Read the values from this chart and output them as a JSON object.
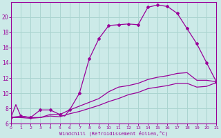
{
  "xlabel": "Windchill (Refroidissement éolien,°C)",
  "bg_color": "#cceae8",
  "grid_color": "#aad4d0",
  "line_color": "#990099",
  "xlim": [
    0,
    21
  ],
  "ylim": [
    6,
    22
  ],
  "xticks": [
    0,
    1,
    2,
    3,
    4,
    5,
    6,
    7,
    8,
    9,
    10,
    11,
    12,
    13,
    14,
    15,
    16,
    17,
    18,
    19,
    20,
    21
  ],
  "yticks": [
    6,
    8,
    10,
    12,
    14,
    16,
    18,
    20
  ],
  "curve1_x": [
    0,
    0.5,
    1,
    2,
    3,
    3.5,
    4,
    4.5,
    5,
    5.5,
    6,
    7,
    8,
    9,
    10,
    11,
    12,
    13,
    14,
    15,
    16,
    17,
    18,
    19,
    20,
    21
  ],
  "curve1_y": [
    6.8,
    8.5,
    7.0,
    6.8,
    7.8,
    7.8,
    7.8,
    7.5,
    7.2,
    7.0,
    7.8,
    10.0,
    14.5,
    17.2,
    18.9,
    19.0,
    19.1,
    19.0,
    21.3,
    21.6,
    21.4,
    20.5,
    18.5,
    16.5,
    14.0,
    11.5
  ],
  "curve1_markers_x": [
    0,
    1,
    2,
    3,
    4,
    5,
    6,
    7,
    8,
    9,
    10,
    11,
    12,
    13,
    14,
    15,
    16,
    17,
    18,
    19,
    20,
    21
  ],
  "curve1_markers_y": [
    6.8,
    7.0,
    6.8,
    7.8,
    7.8,
    7.2,
    7.8,
    10.0,
    14.5,
    17.2,
    18.9,
    19.0,
    19.1,
    19.0,
    21.3,
    21.6,
    21.4,
    20.5,
    18.5,
    16.5,
    14.0,
    11.5
  ],
  "curve2_x": [
    0,
    1,
    2,
    3,
    4,
    5,
    6,
    7,
    8,
    9,
    10,
    11,
    12,
    13,
    14,
    15,
    16,
    17,
    18,
    19,
    20,
    21
  ],
  "curve2_y": [
    6.8,
    7.0,
    6.8,
    6.8,
    7.2,
    7.2,
    7.8,
    8.3,
    8.8,
    9.3,
    10.2,
    10.8,
    11.0,
    11.3,
    11.8,
    12.1,
    12.3,
    12.6,
    12.7,
    11.7,
    11.7,
    11.5
  ],
  "curve3_x": [
    0,
    1,
    2,
    3,
    4,
    5,
    6,
    7,
    8,
    9,
    10,
    11,
    12,
    13,
    14,
    15,
    16,
    17,
    18,
    19,
    20,
    21
  ],
  "curve3_y": [
    6.8,
    6.8,
    6.7,
    6.8,
    7.0,
    6.9,
    7.3,
    7.6,
    8.0,
    8.4,
    8.9,
    9.3,
    9.8,
    10.1,
    10.6,
    10.8,
    11.0,
    11.3,
    11.3,
    10.8,
    10.9,
    11.4
  ]
}
